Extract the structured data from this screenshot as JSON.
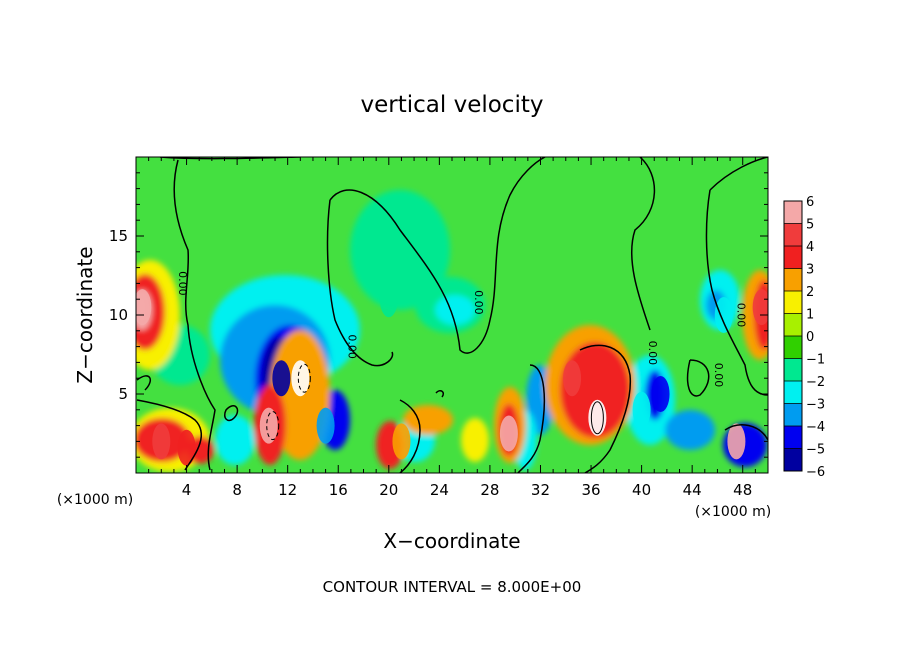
{
  "chart_data": {
    "type": "heatmap",
    "title": "vertical velocity",
    "xlabel": "X−coordinate",
    "ylabel": "Z−coordinate",
    "x_unit_left": "(×1000 m)",
    "x_unit_right": "(×1000 m)",
    "xlim": [
      0,
      50
    ],
    "ylim": [
      0,
      20
    ],
    "x_ticks": [
      4,
      8,
      12,
      16,
      20,
      24,
      28,
      32,
      36,
      40,
      44,
      48
    ],
    "y_ticks": [
      5,
      10,
      15
    ],
    "colorbar_ticks": [
      "6",
      "5",
      "4",
      "3",
      "2",
      "1",
      "0",
      "−1",
      "−2",
      "−3",
      "−4",
      "−5",
      "−6"
    ],
    "colorbar_range": [
      -6,
      6
    ],
    "contour_label": "0.00",
    "footer": "CONTOUR INTERVAL = 8.000E+00",
    "features": [
      {
        "x": 0.5,
        "z": 10.5,
        "value": 5.5
      },
      {
        "x": 2.0,
        "z": 2.0,
        "value": 5.0
      },
      {
        "x": 4.0,
        "z": 1.6,
        "value": 3.5
      },
      {
        "x": 13.0,
        "z": 6.0,
        "value": 6.5
      },
      {
        "x": 10.5,
        "z": 3.0,
        "value": 6.0
      },
      {
        "x": 11.5,
        "z": 6.0,
        "value": -5.5
      },
      {
        "x": 15.0,
        "z": 3.0,
        "value": -3.5
      },
      {
        "x": 29.5,
        "z": 2.5,
        "value": 5.5
      },
      {
        "x": 21.0,
        "z": 2.0,
        "value": 3.0
      },
      {
        "x": 36.5,
        "z": 3.5,
        "value": 6.5
      },
      {
        "x": 34.5,
        "z": 6.0,
        "value": 4.5
      },
      {
        "x": 47.5,
        "z": 2.0,
        "value": 6.0
      },
      {
        "x": 49.5,
        "z": 10.5,
        "value": 4.5
      },
      {
        "x": 46.5,
        "z": 10.0,
        "value": -2.5
      },
      {
        "x": 20.0,
        "z": 11.0,
        "value": -1.5
      },
      {
        "x": 41.5,
        "z": 5.0,
        "value": -4.0
      },
      {
        "x": 40.0,
        "z": 4.0,
        "value": -2.5
      }
    ]
  },
  "colors": {
    "c6": "#f4a8a8",
    "c5": "#f03c3c",
    "c4": "#f02020",
    "c3": "#f8a000",
    "c2": "#f8f000",
    "c1": "#a8f000",
    "c0": "#30d000",
    "cm1": "#00e890",
    "cm2": "#00f0f0",
    "cm3": "#009cf0",
    "cm4": "#0000f0",
    "cm5": "#0000a0",
    "cm6": "#8000c0",
    "background": "#44e040"
  }
}
